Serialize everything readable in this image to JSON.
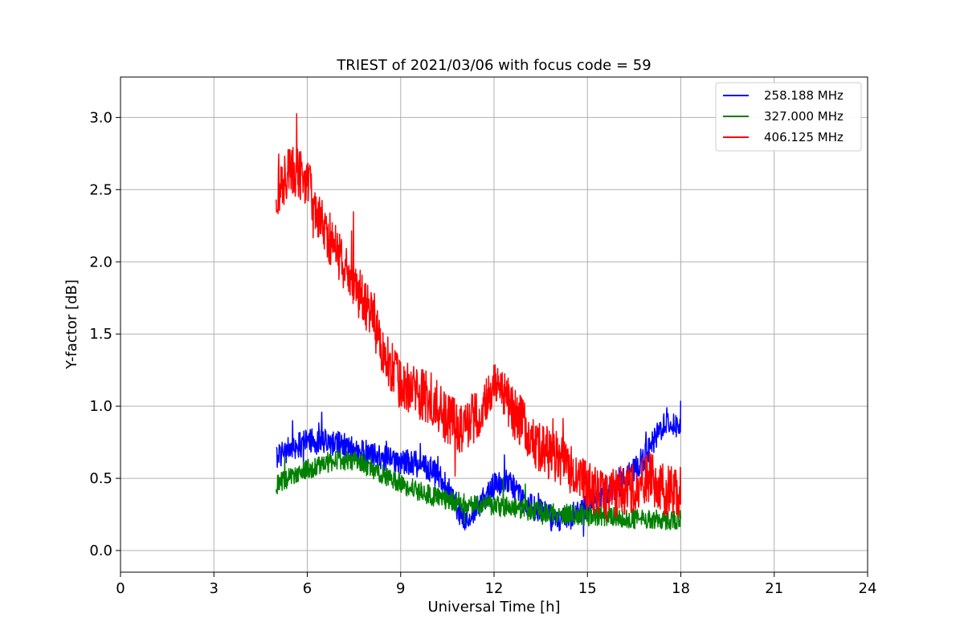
{
  "chart_data": {
    "type": "line",
    "title": "TRIEST of 2021/03/06 with focus code = 59",
    "xlabel": "Universal Time [h]",
    "ylabel": "Y-factor [dB]",
    "xlim": [
      0,
      24
    ],
    "ylim": [
      -0.15,
      3.28
    ],
    "xticks": [
      0,
      3,
      6,
      9,
      12,
      15,
      18,
      21,
      24
    ],
    "yticks": [
      0.0,
      0.5,
      1.0,
      1.5,
      2.0,
      2.5,
      3.0
    ],
    "xtick_labels": [
      "0",
      "3",
      "6",
      "9",
      "12",
      "15",
      "18",
      "21",
      "24"
    ],
    "ytick_labels": [
      "0.0",
      "0.5",
      "1.0",
      "1.5",
      "2.0",
      "2.5",
      "3.0"
    ],
    "grid": true,
    "legend_position": "top-right",
    "series": [
      {
        "name": "258.188 MHz",
        "color": "#0000ff",
        "x": [
          5.0,
          5.5,
          6.0,
          6.5,
          7.0,
          7.5,
          8.0,
          8.5,
          9.0,
          9.5,
          10.0,
          10.5,
          11.0,
          11.5,
          12.0,
          12.5,
          13.0,
          13.5,
          14.0,
          14.5,
          15.0,
          15.5,
          16.0,
          16.5,
          17.0,
          17.5,
          18.0
        ],
        "y": [
          0.65,
          0.72,
          0.75,
          0.76,
          0.74,
          0.7,
          0.67,
          0.64,
          0.62,
          0.6,
          0.56,
          0.44,
          0.22,
          0.3,
          0.45,
          0.48,
          0.32,
          0.28,
          0.2,
          0.25,
          0.3,
          0.4,
          0.45,
          0.55,
          0.7,
          0.9,
          0.85
        ],
        "noise": 0.09
      },
      {
        "name": "327.000 MHz",
        "color": "#008000",
        "x": [
          5.0,
          5.5,
          6.0,
          6.5,
          7.0,
          7.5,
          8.0,
          8.5,
          9.0,
          9.5,
          10.0,
          10.5,
          11.0,
          11.5,
          12.0,
          12.5,
          13.0,
          13.5,
          14.0,
          14.5,
          15.0,
          15.5,
          16.0,
          16.5,
          17.0,
          17.5,
          18.0
        ],
        "y": [
          0.45,
          0.52,
          0.56,
          0.6,
          0.63,
          0.62,
          0.58,
          0.52,
          0.46,
          0.42,
          0.38,
          0.35,
          0.33,
          0.32,
          0.31,
          0.3,
          0.28,
          0.27,
          0.26,
          0.25,
          0.24,
          0.24,
          0.23,
          0.22,
          0.22,
          0.21,
          0.22
        ],
        "noise": 0.07
      },
      {
        "name": "406.125 MHz",
        "color": "#ff0000",
        "x": [
          5.0,
          5.5,
          6.0,
          6.5,
          7.0,
          7.5,
          8.0,
          8.5,
          9.0,
          9.5,
          10.0,
          10.5,
          11.0,
          11.5,
          12.0,
          12.5,
          13.0,
          13.5,
          14.0,
          14.5,
          15.0,
          15.5,
          16.0,
          16.5,
          17.0,
          17.5,
          18.0
        ],
        "y": [
          2.45,
          2.65,
          2.55,
          2.25,
          2.05,
          1.85,
          1.65,
          1.35,
          1.15,
          1.1,
          1.05,
          0.9,
          0.85,
          0.95,
          1.15,
          1.0,
          0.85,
          0.7,
          0.65,
          0.55,
          0.45,
          0.38,
          0.4,
          0.45,
          0.5,
          0.42,
          0.4
        ],
        "noise": 0.18
      }
    ]
  }
}
